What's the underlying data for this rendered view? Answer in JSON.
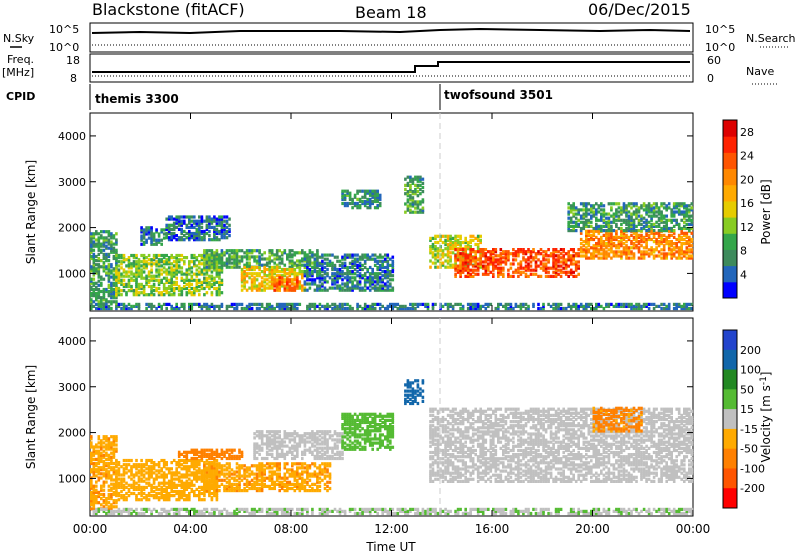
{
  "header": {
    "title": "Blackstone (fitACF)",
    "beam": "Beam 18",
    "date": "06/Dec/2015"
  },
  "top_panel": {
    "nsky_label": "N.Sky",
    "nsearch_label": "N.Search",
    "freq_label": "Freq.",
    "freq_unit": "[MHz]",
    "nave_label": "Nave",
    "cpid_label": "CPID",
    "noise_ticks_left": [
      "10^5",
      "10^0"
    ],
    "noise_ticks_right": [
      "10^5",
      "10^0"
    ],
    "freq_ticks": [
      "18",
      "8"
    ],
    "nave_ticks": [
      "60",
      "0"
    ],
    "cpid_segments": [
      {
        "name": "themis 3300",
        "start_hour": 0,
        "end_hour": 14
      },
      {
        "name": "twofsound 3501",
        "start_hour": 14,
        "end_hour": 24
      }
    ],
    "freq_step": [
      {
        "hour": 0,
        "mhz": 10.5
      },
      {
        "hour": 13.4,
        "mhz": 13.5
      },
      {
        "hour": 14,
        "mhz": 15.5
      }
    ],
    "nave_values": [
      {
        "hour": 0,
        "nave": 20
      },
      {
        "hour": 24,
        "nave": 20
      }
    ]
  },
  "time_axis": {
    "label": "Time UT",
    "ticks": [
      "00:00",
      "04:00",
      "08:00",
      "12:00",
      "16:00",
      "20:00",
      "00:00"
    ],
    "range_hours": [
      0,
      24
    ]
  },
  "colors": {
    "power": [
      "#0000ff",
      "#2266bb",
      "#3d8a5c",
      "#33a64a",
      "#88cc22",
      "#e6cc00",
      "#ffaa00",
      "#ff8800",
      "#ff5500",
      "#ff2200",
      "#dd0000"
    ],
    "velocity": [
      "#2244cc",
      "#1166aa",
      "#228822",
      "#55bb33",
      "#c0c0c0",
      "#ffaa00",
      "#ff8000",
      "#ff5500",
      "#ff0000"
    ]
  },
  "chart_data": [
    {
      "type": "heatmap",
      "parameter": "power",
      "ylabel": "Slant Range [km]",
      "ylim": [
        180,
        4500
      ],
      "xlim_hours": [
        0,
        24
      ],
      "yticks": [
        1000,
        2000,
        3000,
        4000
      ],
      "colorbar_label": "Power [dB]",
      "colorbar_ticks": [
        "4",
        "8",
        "12",
        "16",
        "20",
        "24",
        "28"
      ],
      "colorbar_range": [
        0,
        30
      ],
      "regions": [
        {
          "t0": 0.0,
          "t1": 1.0,
          "r0": 300,
          "r1": 1900,
          "p": 8
        },
        {
          "t0": 1.0,
          "t1": 5.2,
          "r0": 500,
          "r1": 1400,
          "p": 12
        },
        {
          "t0": 2.0,
          "t1": 3.0,
          "r0": 1600,
          "r1": 2000,
          "p": 6
        },
        {
          "t0": 3.0,
          "t1": 5.5,
          "r0": 1700,
          "r1": 2200,
          "p": 5
        },
        {
          "t0": 4.5,
          "t1": 9.0,
          "r0": 1100,
          "r1": 1500,
          "p": 9
        },
        {
          "t0": 6.0,
          "t1": 8.5,
          "r0": 600,
          "r1": 1100,
          "p": 16
        },
        {
          "t0": 7.2,
          "t1": 8.2,
          "r0": 600,
          "r1": 900,
          "p": 22
        },
        {
          "t0": 8.5,
          "t1": 12.0,
          "r0": 600,
          "r1": 1400,
          "p": 6
        },
        {
          "t0": 10.0,
          "t1": 11.5,
          "r0": 2400,
          "r1": 2800,
          "p": 7
        },
        {
          "t0": 12.5,
          "t1": 13.2,
          "r0": 2300,
          "r1": 3100,
          "p": 9
        },
        {
          "t0": 13.5,
          "t1": 15.5,
          "r0": 1100,
          "r1": 1800,
          "p": 14
        },
        {
          "t0": 14.5,
          "t1": 19.5,
          "r0": 900,
          "r1": 1500,
          "p": 24
        },
        {
          "t0": 19.5,
          "t1": 24.0,
          "r0": 1300,
          "r1": 1900,
          "p": 20
        },
        {
          "t0": 19.0,
          "t1": 24.0,
          "r0": 1900,
          "r1": 2500,
          "p": 8
        },
        {
          "t0": 0.0,
          "t1": 24.0,
          "r0": 200,
          "r1": 300,
          "p": 6
        }
      ]
    },
    {
      "type": "heatmap",
      "parameter": "velocity",
      "ylabel": "Slant Range [km]",
      "ylim": [
        180,
        4500
      ],
      "xlim_hours": [
        0,
        24
      ],
      "yticks": [
        1000,
        2000,
        3000,
        4000
      ],
      "colorbar_label": "Velocity [m s^-1]",
      "colorbar_ticks": [
        "200",
        "100",
        "50",
        "15",
        "-15",
        "-50",
        "-100",
        "-200"
      ],
      "regions": [
        {
          "t0": 0.0,
          "t1": 1.0,
          "r0": 300,
          "r1": 1900,
          "v": -40
        },
        {
          "t0": 1.0,
          "t1": 5.0,
          "r0": 500,
          "r1": 1400,
          "v": -30
        },
        {
          "t0": 3.5,
          "t1": 6.0,
          "r0": 1400,
          "r1": 1600,
          "v": -80
        },
        {
          "t0": 4.5,
          "t1": 9.5,
          "r0": 700,
          "r1": 1300,
          "v": -40
        },
        {
          "t0": 6.5,
          "t1": 10.0,
          "r0": 1400,
          "r1": 2000,
          "v": 0
        },
        {
          "t0": 10.0,
          "t1": 12.0,
          "r0": 1600,
          "r1": 2400,
          "v": 30
        },
        {
          "t0": 12.5,
          "t1": 13.2,
          "r0": 2600,
          "r1": 3100,
          "v": 150
        },
        {
          "t0": 13.5,
          "t1": 24.0,
          "r0": 900,
          "r1": 2500,
          "v": 0
        },
        {
          "t0": 20.0,
          "t1": 22.0,
          "r0": 2000,
          "r1": 2500,
          "v": -60
        },
        {
          "t0": 0.0,
          "t1": 24.0,
          "r0": 200,
          "r1": 300,
          "v": 10
        }
      ]
    }
  ]
}
